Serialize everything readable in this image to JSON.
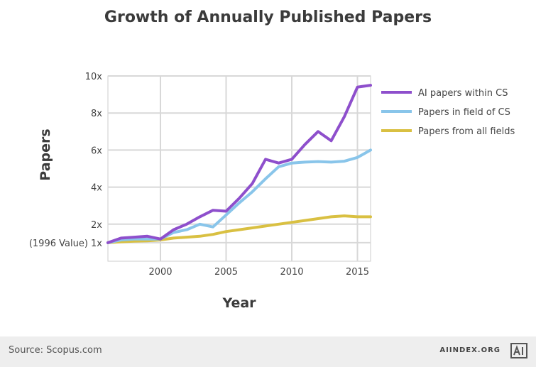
{
  "chart_data": {
    "type": "line",
    "title": "Growth of Annually Published Papers",
    "xlabel": "Year",
    "ylabel": "Papers",
    "xlim": [
      1996,
      2016
    ],
    "ylim": [
      0,
      10
    ],
    "x_ticks": [
      {
        "value": 2000,
        "label": "2000"
      },
      {
        "value": 2005,
        "label": "2005"
      },
      {
        "value": 2010,
        "label": "2010"
      },
      {
        "value": 2015,
        "label": "2015"
      }
    ],
    "y_ticks": [
      {
        "value": 1,
        "label": "(1996 Value) 1x"
      },
      {
        "value": 2,
        "label": "2x"
      },
      {
        "value": 4,
        "label": "4x"
      },
      {
        "value": 6,
        "label": "6x"
      },
      {
        "value": 8,
        "label": "8x"
      },
      {
        "value": 10,
        "label": "10x"
      }
    ],
    "grid": true,
    "legend_position": "right",
    "x": [
      1996,
      1997,
      1998,
      1999,
      2000,
      2001,
      2002,
      2003,
      2004,
      2005,
      2006,
      2007,
      2008,
      2009,
      2010,
      2011,
      2012,
      2013,
      2014,
      2015,
      2016
    ],
    "series": [
      {
        "name": "AI papers within CS",
        "color": "#8e4fcc",
        "values": [
          1.0,
          1.25,
          1.3,
          1.35,
          1.2,
          1.7,
          2.0,
          2.4,
          2.75,
          2.7,
          3.4,
          4.2,
          5.5,
          5.3,
          5.5,
          6.3,
          7.0,
          6.5,
          7.8,
          9.4,
          9.5
        ]
      },
      {
        "name": "Papers in field of CS",
        "color": "#89c5ea",
        "values": [
          1.0,
          1.15,
          1.2,
          1.2,
          1.2,
          1.55,
          1.7,
          2.0,
          1.85,
          2.5,
          3.15,
          3.75,
          4.45,
          5.1,
          5.3,
          5.35,
          5.38,
          5.35,
          5.4,
          5.6,
          6.0
        ]
      },
      {
        "name": "Papers from all fields",
        "color": "#d9c042",
        "values": [
          1.0,
          1.05,
          1.08,
          1.1,
          1.15,
          1.25,
          1.3,
          1.35,
          1.45,
          1.6,
          1.7,
          1.8,
          1.9,
          2.0,
          2.1,
          2.2,
          2.3,
          2.4,
          2.45,
          2.4,
          2.4
        ]
      }
    ]
  },
  "footer": {
    "source": "Source: Scopus.com",
    "brand": "AIINDEX.ORG",
    "logo_icon": "ai-index-logo-icon"
  }
}
